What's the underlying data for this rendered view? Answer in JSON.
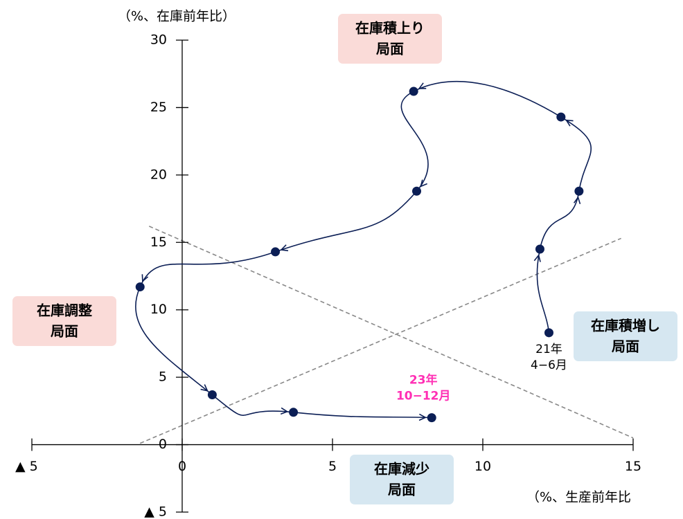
{
  "chart_data": {
    "type": "connected_scatter",
    "y_label": "（%、在庫前年比）",
    "x_label": "（%、生産前年比",
    "xlim": [
      -5,
      15
    ],
    "ylim": [
      -5,
      30
    ],
    "xticks": [
      {
        "value": -5,
        "label": "▲ 5"
      },
      0,
      5,
      10,
      15
    ],
    "yticks": [
      {
        "value": -5,
        "label": "▲ 5"
      },
      0,
      5,
      10,
      15,
      20,
      25,
      30
    ],
    "series": [
      {
        "color": "#0b1e55",
        "x": [
          12.2,
          11.9,
          13.2,
          12.6,
          7.7,
          7.8,
          3.1,
          -1.4,
          1.0,
          3.7,
          8.3
        ],
        "values": [
          8.3,
          14.5,
          18.8,
          24.3,
          26.2,
          18.8,
          14.3,
          11.7,
          3.7,
          2.4,
          2.0
        ]
      }
    ],
    "reference_lines": [
      {
        "x": [
          -1.1,
          15
        ],
        "values": [
          16.2,
          0.5
        ]
      },
      {
        "x": [
          -1.4,
          14.6
        ],
        "values": [
          0.1,
          15.3
        ]
      }
    ],
    "point_labels": [
      {
        "lines": [
          "21年",
          "4−6月"
        ]
      },
      {
        "lines": [
          "23年",
          "10−12月"
        ]
      }
    ],
    "phases": [
      {
        "lines": [
          "在庫積上り",
          "局面"
        ]
      },
      {
        "lines": [
          "在庫調整",
          "局面"
        ]
      },
      {
        "lines": [
          "在庫積増し",
          "局面"
        ]
      },
      {
        "lines": [
          "在庫減少",
          "局面"
        ]
      }
    ]
  }
}
